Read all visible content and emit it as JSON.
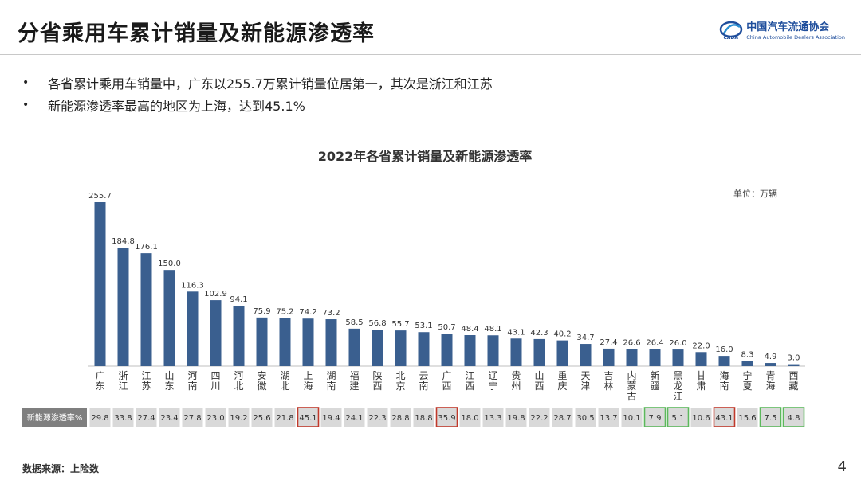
{
  "header": {
    "title": "分省乘用车累计销量及新能源渗透率",
    "logo_cn": "中国汽车流通协会",
    "logo_en": "China Automobile Dealers Association"
  },
  "bullets": [
    "各省累计乘用车销量中，广东以255.7万累计销量位居第一，其次是浙江和江苏",
    "新能源渗透率最高的地区为上海，达到45.1%"
  ],
  "footer": {
    "source": "数据来源：上险数",
    "page_number": "4"
  },
  "colors": {
    "bar": "#3A5F8F",
    "highlight_red": "#C0392B",
    "highlight_green": "#5CB85C",
    "table_cell": "#D9D9D9",
    "table_header": "#7F7F7F"
  },
  "chart_data": {
    "type": "bar",
    "title": "2022年各省累计销量及新能源渗透率",
    "unit_label": "单位：万辆",
    "table_label": "新能源渗透率%",
    "ylim": [
      0,
      260
    ],
    "categories": [
      "广东",
      "浙江",
      "江苏",
      "山东",
      "河南",
      "四川",
      "河北",
      "安徽",
      "湖北",
      "上海",
      "湖南",
      "福建",
      "陕西",
      "北京",
      "云南",
      "广西",
      "江西",
      "辽宁",
      "贵州",
      "山西",
      "重庆",
      "天津",
      "吉林",
      "内蒙古",
      "新疆",
      "黑龙江",
      "甘肃",
      "海南",
      "宁夏",
      "青海",
      "西藏"
    ],
    "series": [
      {
        "name": "累计销量",
        "values": [
          255.7,
          184.8,
          176.1,
          150.0,
          116.3,
          102.9,
          94.1,
          75.9,
          75.2,
          74.2,
          73.2,
          58.5,
          56.8,
          55.7,
          53.1,
          50.7,
          48.4,
          48.1,
          43.1,
          42.3,
          40.2,
          34.7,
          27.4,
          26.6,
          26.4,
          26.0,
          22.0,
          16.0,
          8.3,
          4.9,
          3.0
        ]
      },
      {
        "name": "新能源渗透率%",
        "values": [
          29.8,
          33.8,
          27.4,
          23.4,
          27.8,
          23.0,
          19.2,
          25.6,
          21.8,
          45.1,
          19.4,
          24.1,
          22.3,
          28.8,
          18.8,
          35.9,
          18.0,
          13.3,
          19.8,
          22.2,
          28.7,
          30.5,
          13.7,
          10.1,
          7.9,
          5.1,
          10.6,
          43.1,
          15.6,
          7.5,
          4.8
        ]
      }
    ],
    "highlights_red": [
      "上海",
      "广西",
      "海南"
    ],
    "highlights_green": [
      "新疆",
      "黑龙江",
      "青海",
      "西藏"
    ]
  }
}
